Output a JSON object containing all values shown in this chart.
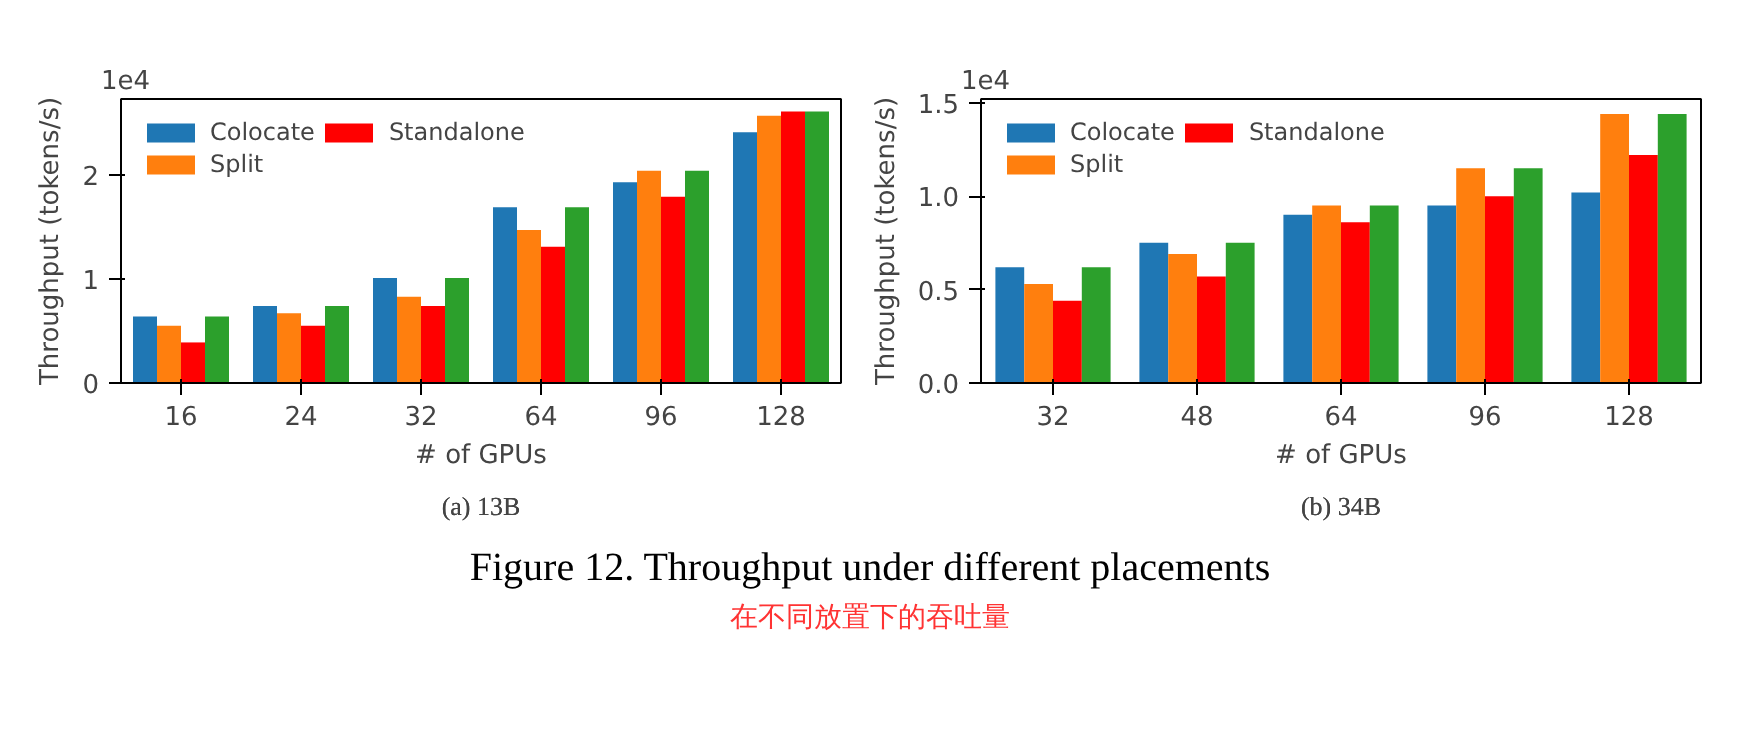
{
  "chart_data": [
    {
      "type": "bar",
      "title": "(a) 13B",
      "xlabel": "# of GPUs",
      "ylabel": "Throughput (tokens/s)",
      "annotations": [
        "1e4",
        "Figure 12. Throughput under different placements",
        "在不同放置下的吞吐量"
      ],
      "categories": [
        "16",
        "24",
        "32",
        "64",
        "96",
        "128"
      ],
      "series": [
        {
          "name": "Colocate",
          "color": "#1f77b4",
          "values": [
            0.64,
            0.74,
            1.01,
            1.69,
            1.93,
            2.41
          ]
        },
        {
          "name": "Split",
          "color": "#ff7f0e",
          "values": [
            0.55,
            0.67,
            0.83,
            1.47,
            2.04,
            2.57
          ]
        },
        {
          "name": "Standalone",
          "color": "#ff0000",
          "values": [
            0.39,
            0.55,
            0.74,
            1.31,
            1.79,
            2.61
          ]
        },
        {
          "color": "#2ca02c",
          "values": [
            0.64,
            0.74,
            1.01,
            1.69,
            2.04,
            2.61
          ]
        }
      ],
      "ylim": [
        0,
        2.73
      ],
      "yticks": [
        0,
        1,
        2
      ],
      "grid": false,
      "legend": "top left"
    },
    {
      "type": "bar",
      "title": "(b) 34B",
      "xlabel": "# of GPUs",
      "ylabel": "Throughput (tokens/s)",
      "annotations": [
        "1e4"
      ],
      "categories": [
        "32",
        "48",
        "64",
        "96",
        "128"
      ],
      "series": [
        {
          "name": "Colocate",
          "color": "#1f77b4",
          "values": [
            0.62,
            0.75,
            0.9,
            0.95,
            1.02
          ]
        },
        {
          "name": "Split",
          "color": "#ff7f0e",
          "values": [
            0.53,
            0.69,
            0.95,
            1.15,
            1.44
          ]
        },
        {
          "name": "Standalone",
          "color": "#ff0000",
          "values": [
            0.44,
            0.57,
            0.86,
            1.0,
            1.22
          ]
        },
        {
          "color": "#2ca02c",
          "values": [
            0.62,
            0.75,
            0.95,
            1.15,
            1.44
          ]
        }
      ],
      "ylim": [
        0,
        1.52
      ],
      "yticks": [
        {
          "value": 0,
          "label": "0.0"
        },
        {
          "value": 0.5,
          "label": "0.5"
        },
        {
          "value": 1,
          "label": "1.0"
        },
        {
          "value": 1.5,
          "label": "1.5"
        }
      ],
      "grid": false,
      "legend": "top left"
    }
  ]
}
